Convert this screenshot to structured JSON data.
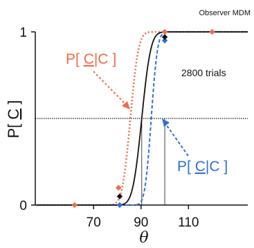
{
  "chart_data": {
    "type": "line",
    "title": "",
    "annotation_top_right": "Observer MDM",
    "trials_label": "2800 trials",
    "xlabel": "θ",
    "ylabel": {
      "prefix": "P[ ",
      "underlined": "C",
      "suffix": " ]"
    },
    "xlim": [
      46,
      135
    ],
    "ylim": [
      0,
      1
    ],
    "xticks": [
      70,
      90,
      110
    ],
    "yticks": [
      0,
      1
    ],
    "ytick_labels": [
      "0",
      "1"
    ],
    "reference_line": {
      "y": 0.5,
      "style": "dotted"
    },
    "grid": false,
    "series": [
      {
        "label_parts": {
          "prefix": "P[ ",
          "underlined": "C",
          "mid": "|",
          "plain": "C",
          "suffix": " ]"
        },
        "color": "#f26a4a",
        "dash": "dotted",
        "mu": 85.5,
        "sigma": 2.7,
        "points": [
          [
            62,
            0.0
          ],
          [
            80.5,
            0.1
          ],
          [
            100,
            1.0
          ],
          [
            120,
            1.0
          ]
        ]
      },
      {
        "label_parts": {
          "prefix": "P[ ",
          "underlined": "C",
          "mid": "|",
          "plain": "C",
          "suffix": " ]"
        },
        "color": "#2f6fd8",
        "dash": "dashed",
        "mu": 94.3,
        "sigma": 2.1,
        "points": [
          [
            81,
            0.0
          ],
          [
            100,
            0.95
          ]
        ]
      },
      {
        "color": "#111111",
        "dash": "solid",
        "mu": 90.3,
        "sigma": 3.0,
        "points": [
          [
            81,
            0.05
          ],
          [
            100,
            0.97
          ]
        ]
      }
    ],
    "criterion_lines": [
      {
        "x": 90.3
      },
      {
        "x": 100
      }
    ]
  }
}
